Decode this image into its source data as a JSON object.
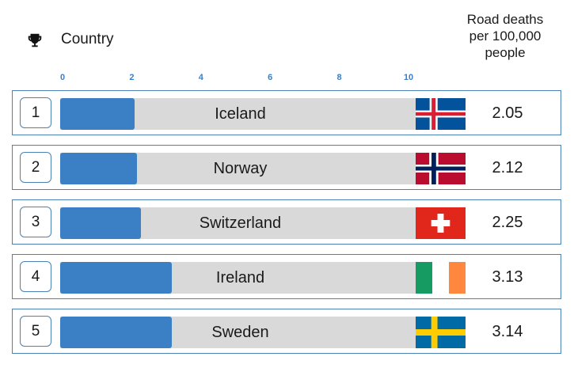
{
  "header": {
    "country_label": "Country",
    "value_label_lines": [
      "Road deaths",
      "per 100,000",
      "people"
    ],
    "trophy_icon": "trophy-icon"
  },
  "colors": {
    "bar": "#3b80c4",
    "track": "#d9d9d9",
    "border": "#4a82b5",
    "tick": "#3a7fc6"
  },
  "chart_data": {
    "type": "bar",
    "orientation": "horizontal",
    "title": "",
    "xlabel": "",
    "ylabel": "Road deaths per 100,000 people",
    "xlim": [
      0,
      10
    ],
    "ticks": [
      "0",
      "2",
      "4",
      "6",
      "8",
      "10"
    ],
    "categories": [
      "Iceland",
      "Norway",
      "Switzerland",
      "Ireland",
      "Sweden"
    ],
    "ranks": [
      "1",
      "2",
      "3",
      "4",
      "5"
    ],
    "values": [
      2.05,
      2.12,
      2.25,
      3.13,
      3.14
    ],
    "value_labels": [
      "2.05",
      "2.12",
      "2.25",
      "3.13",
      "3.14"
    ],
    "flags": [
      "iceland-flag-icon",
      "norway-flag-icon",
      "switzerland-flag-icon",
      "ireland-flag-icon",
      "sweden-flag-icon"
    ]
  }
}
